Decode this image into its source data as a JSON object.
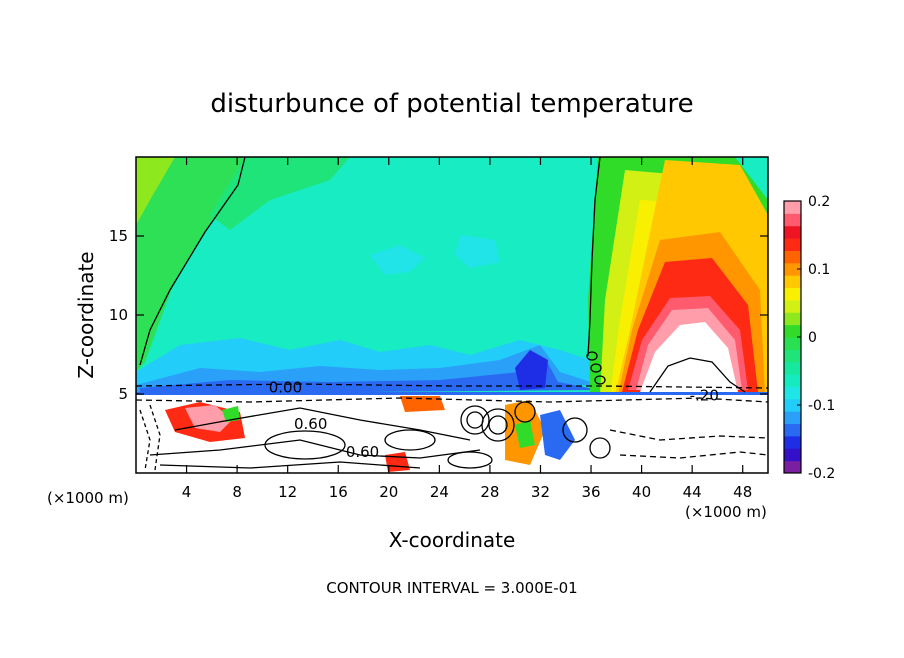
{
  "chart_data": {
    "type": "heatmap",
    "title": "disturbunce of potential temperature",
    "xlabel": "X-coordinate",
    "ylabel": "Z-coordinate",
    "x_unit": "(×1000 m)",
    "x_unit_right": "(×1000 m)",
    "xlim": [
      0,
      50
    ],
    "ylim": [
      0,
      20
    ],
    "x_ticks": [
      4,
      8,
      12,
      16,
      20,
      24,
      28,
      32,
      36,
      40,
      44,
      48
    ],
    "y_ticks": [
      5,
      10,
      15
    ],
    "colorbar": {
      "min": -0.2,
      "max": 0.2,
      "ticks": [
        {
          "value": 0.2,
          "label": "0.2"
        },
        {
          "value": 0.1,
          "label": "0.1"
        },
        {
          "value": 0,
          "label": "0"
        },
        {
          "value": -0.1,
          "label": "-0.1"
        },
        {
          "value": -0.2,
          "label": "-0.2"
        }
      ],
      "colors": [
        "#7a1fa0",
        "#3410c8",
        "#1e2ee6",
        "#2a6af2",
        "#2aa0f8",
        "#22cdfa",
        "#1ee6e6",
        "#14ecc0",
        "#16e8a0",
        "#1ee47a",
        "#28e050",
        "#30dc28",
        "#8ee81e",
        "#d2f014",
        "#f8f000",
        "#ffc800",
        "#ff9600",
        "#ff6400",
        "#ff2a14",
        "#ee1424",
        "#ff5a6e",
        "#ff9eaa"
      ]
    },
    "annotations": [
      {
        "text": "0.60",
        "x": 12.5,
        "y": 2.8
      },
      {
        "text": "0.60",
        "x": 16.6,
        "y": 1.0
      },
      {
        "text": "0.00",
        "x": 10.5,
        "y": 5.1
      },
      {
        "text": "-.20",
        "x": 43.8,
        "y": 4.6
      }
    ],
    "footer": "CONTOUR INTERVAL = 3.000E-01"
  }
}
